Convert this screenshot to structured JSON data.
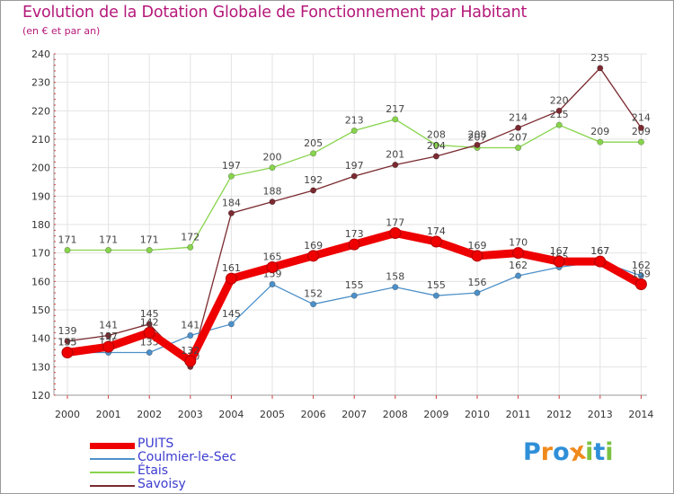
{
  "header": {
    "title": "Evolution de la Dotation Globale de Fonctionnement par Habitant",
    "subtitle": "(en € et par an)"
  },
  "chart_data": {
    "type": "line",
    "title": "Evolution de la Dotation Globale de Fonctionnement par Habitant",
    "subtitle": "(en € et par an)",
    "xlabel": "",
    "ylabel": "",
    "ylim": [
      120,
      240
    ],
    "yticks": [
      120,
      130,
      140,
      150,
      160,
      170,
      180,
      190,
      200,
      210,
      220,
      230,
      240
    ],
    "grid": true,
    "legend_position": "bottom-left",
    "categories": [
      "2000",
      "2001",
      "2002",
      "2003",
      "2004",
      "2005",
      "2006",
      "2007",
      "2008",
      "2009",
      "2010",
      "2011",
      "2012",
      "2013",
      "2014"
    ],
    "series": [
      {
        "name": "Étais",
        "color": "#88d44c",
        "values": [
          171,
          171,
          171,
          172,
          197,
          200,
          205,
          213,
          217,
          208,
          207,
          207,
          215,
          209,
          209
        ]
      },
      {
        "name": "Savoisy",
        "color": "#7a2a30",
        "values": [
          139,
          141,
          145,
          130,
          184,
          188,
          192,
          197,
          201,
          204,
          208,
          214,
          220,
          235,
          214
        ]
      },
      {
        "name": "Coulmier-le-Sec",
        "color": "#4d90c8",
        "values": [
          135,
          135,
          135,
          141,
          145,
          159,
          152,
          155,
          158,
          155,
          156,
          162,
          165,
          167,
          162
        ]
      },
      {
        "name": "PUITS",
        "color": "#ee0000",
        "values": [
          135,
          137,
          142,
          132,
          161,
          165,
          169,
          173,
          177,
          174,
          169,
          170,
          167,
          167,
          159
        ]
      }
    ]
  },
  "legend": {
    "items": [
      {
        "label": "PUITS",
        "color": "#ee0000"
      },
      {
        "label": "Coulmier-le-Sec",
        "color": "#4d90c8"
      },
      {
        "label": "Étais",
        "color": "#88d44c"
      },
      {
        "label": "Savoisy",
        "color": "#7a2a30"
      }
    ]
  },
  "logo": {
    "letters": [
      "P",
      "r",
      "o",
      "x",
      "i",
      "t",
      "i"
    ],
    "colors": [
      "#2f8fd8",
      "#f08a1c",
      "#2f8fd8",
      "#f08a1c",
      "#7cc242",
      "#2f8fd8",
      "#7cc242"
    ]
  }
}
